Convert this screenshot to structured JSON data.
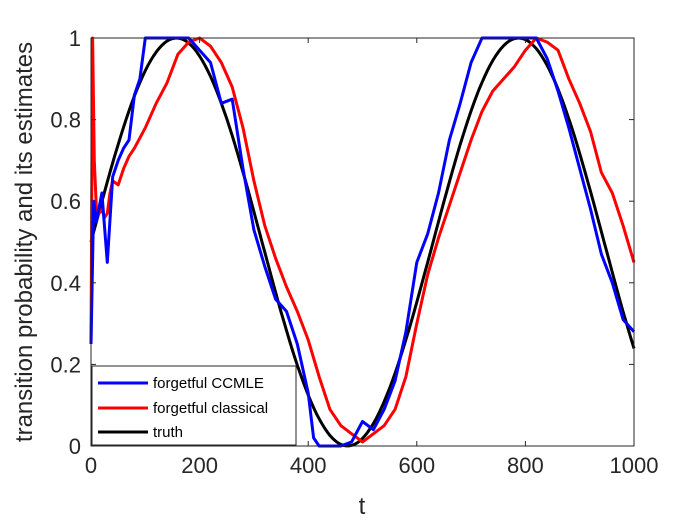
{
  "chart_data": {
    "type": "line",
    "xlabel": "t",
    "ylabel": "transition probability and its estimates",
    "xlim": [
      0,
      1000
    ],
    "ylim": [
      0,
      1
    ],
    "xticks": [
      "0",
      "200",
      "400",
      "600",
      "800",
      "1000"
    ],
    "yticks": [
      "0",
      "0.2",
      "0.4",
      "0.6",
      "0.8",
      "1"
    ],
    "grid": false,
    "legend_position": "bottom-left",
    "series": [
      {
        "name": "forgetful CCMLE",
        "color": "#0000ff",
        "x": [
          0,
          5,
          10,
          20,
          30,
          40,
          50,
          60,
          70,
          80,
          90,
          100,
          120,
          140,
          160,
          180,
          200,
          220,
          240,
          260,
          280,
          300,
          320,
          340,
          360,
          380,
          400,
          410,
          420,
          440,
          460,
          480,
          500,
          520,
          540,
          560,
          580,
          600,
          620,
          640,
          660,
          680,
          700,
          720,
          740,
          760,
          780,
          800,
          820,
          840,
          860,
          880,
          900,
          920,
          940,
          960,
          980,
          1000
        ],
        "y": [
          0.25,
          0.6,
          0.55,
          0.62,
          0.45,
          0.66,
          0.7,
          0.73,
          0.75,
          0.86,
          0.9,
          1.0,
          1.0,
          1.0,
          1.0,
          1.0,
          0.97,
          0.94,
          0.84,
          0.85,
          0.68,
          0.53,
          0.44,
          0.36,
          0.33,
          0.25,
          0.13,
          0.02,
          0.0,
          0.0,
          0.0,
          0.01,
          0.06,
          0.04,
          0.09,
          0.16,
          0.28,
          0.45,
          0.52,
          0.62,
          0.75,
          0.84,
          0.94,
          1.0,
          1.0,
          1.0,
          1.0,
          1.0,
          1.0,
          0.95,
          0.87,
          0.78,
          0.68,
          0.58,
          0.47,
          0.4,
          0.31,
          0.28
        ]
      },
      {
        "name": "forgetful classical",
        "color": "#ff0000",
        "x": [
          0,
          3,
          6,
          10,
          15,
          20,
          25,
          30,
          35,
          40,
          50,
          60,
          70,
          80,
          100,
          120,
          140,
          160,
          180,
          200,
          220,
          240,
          260,
          280,
          300,
          320,
          340,
          360,
          380,
          400,
          420,
          440,
          460,
          480,
          490,
          500,
          520,
          540,
          560,
          580,
          600,
          620,
          640,
          660,
          680,
          700,
          720,
          740,
          760,
          780,
          800,
          820,
          840,
          860,
          880,
          900,
          920,
          940,
          960,
          980,
          1000
        ],
        "y": [
          0.25,
          1.0,
          0.7,
          0.58,
          0.57,
          0.58,
          0.56,
          0.57,
          0.62,
          0.65,
          0.64,
          0.68,
          0.71,
          0.73,
          0.78,
          0.84,
          0.89,
          0.96,
          0.99,
          1.0,
          0.98,
          0.94,
          0.88,
          0.78,
          0.65,
          0.54,
          0.46,
          0.39,
          0.33,
          0.26,
          0.17,
          0.09,
          0.05,
          0.03,
          0.02,
          0.01,
          0.03,
          0.05,
          0.09,
          0.17,
          0.3,
          0.42,
          0.51,
          0.59,
          0.67,
          0.75,
          0.82,
          0.87,
          0.9,
          0.93,
          0.97,
          1.0,
          0.99,
          0.97,
          0.9,
          0.84,
          0.77,
          0.67,
          0.62,
          0.54,
          0.45
        ]
      },
      {
        "name": "truth",
        "color": "#000000",
        "function": "0.5 + 0.5*sin(2*pi*t/630)"
      }
    ]
  }
}
